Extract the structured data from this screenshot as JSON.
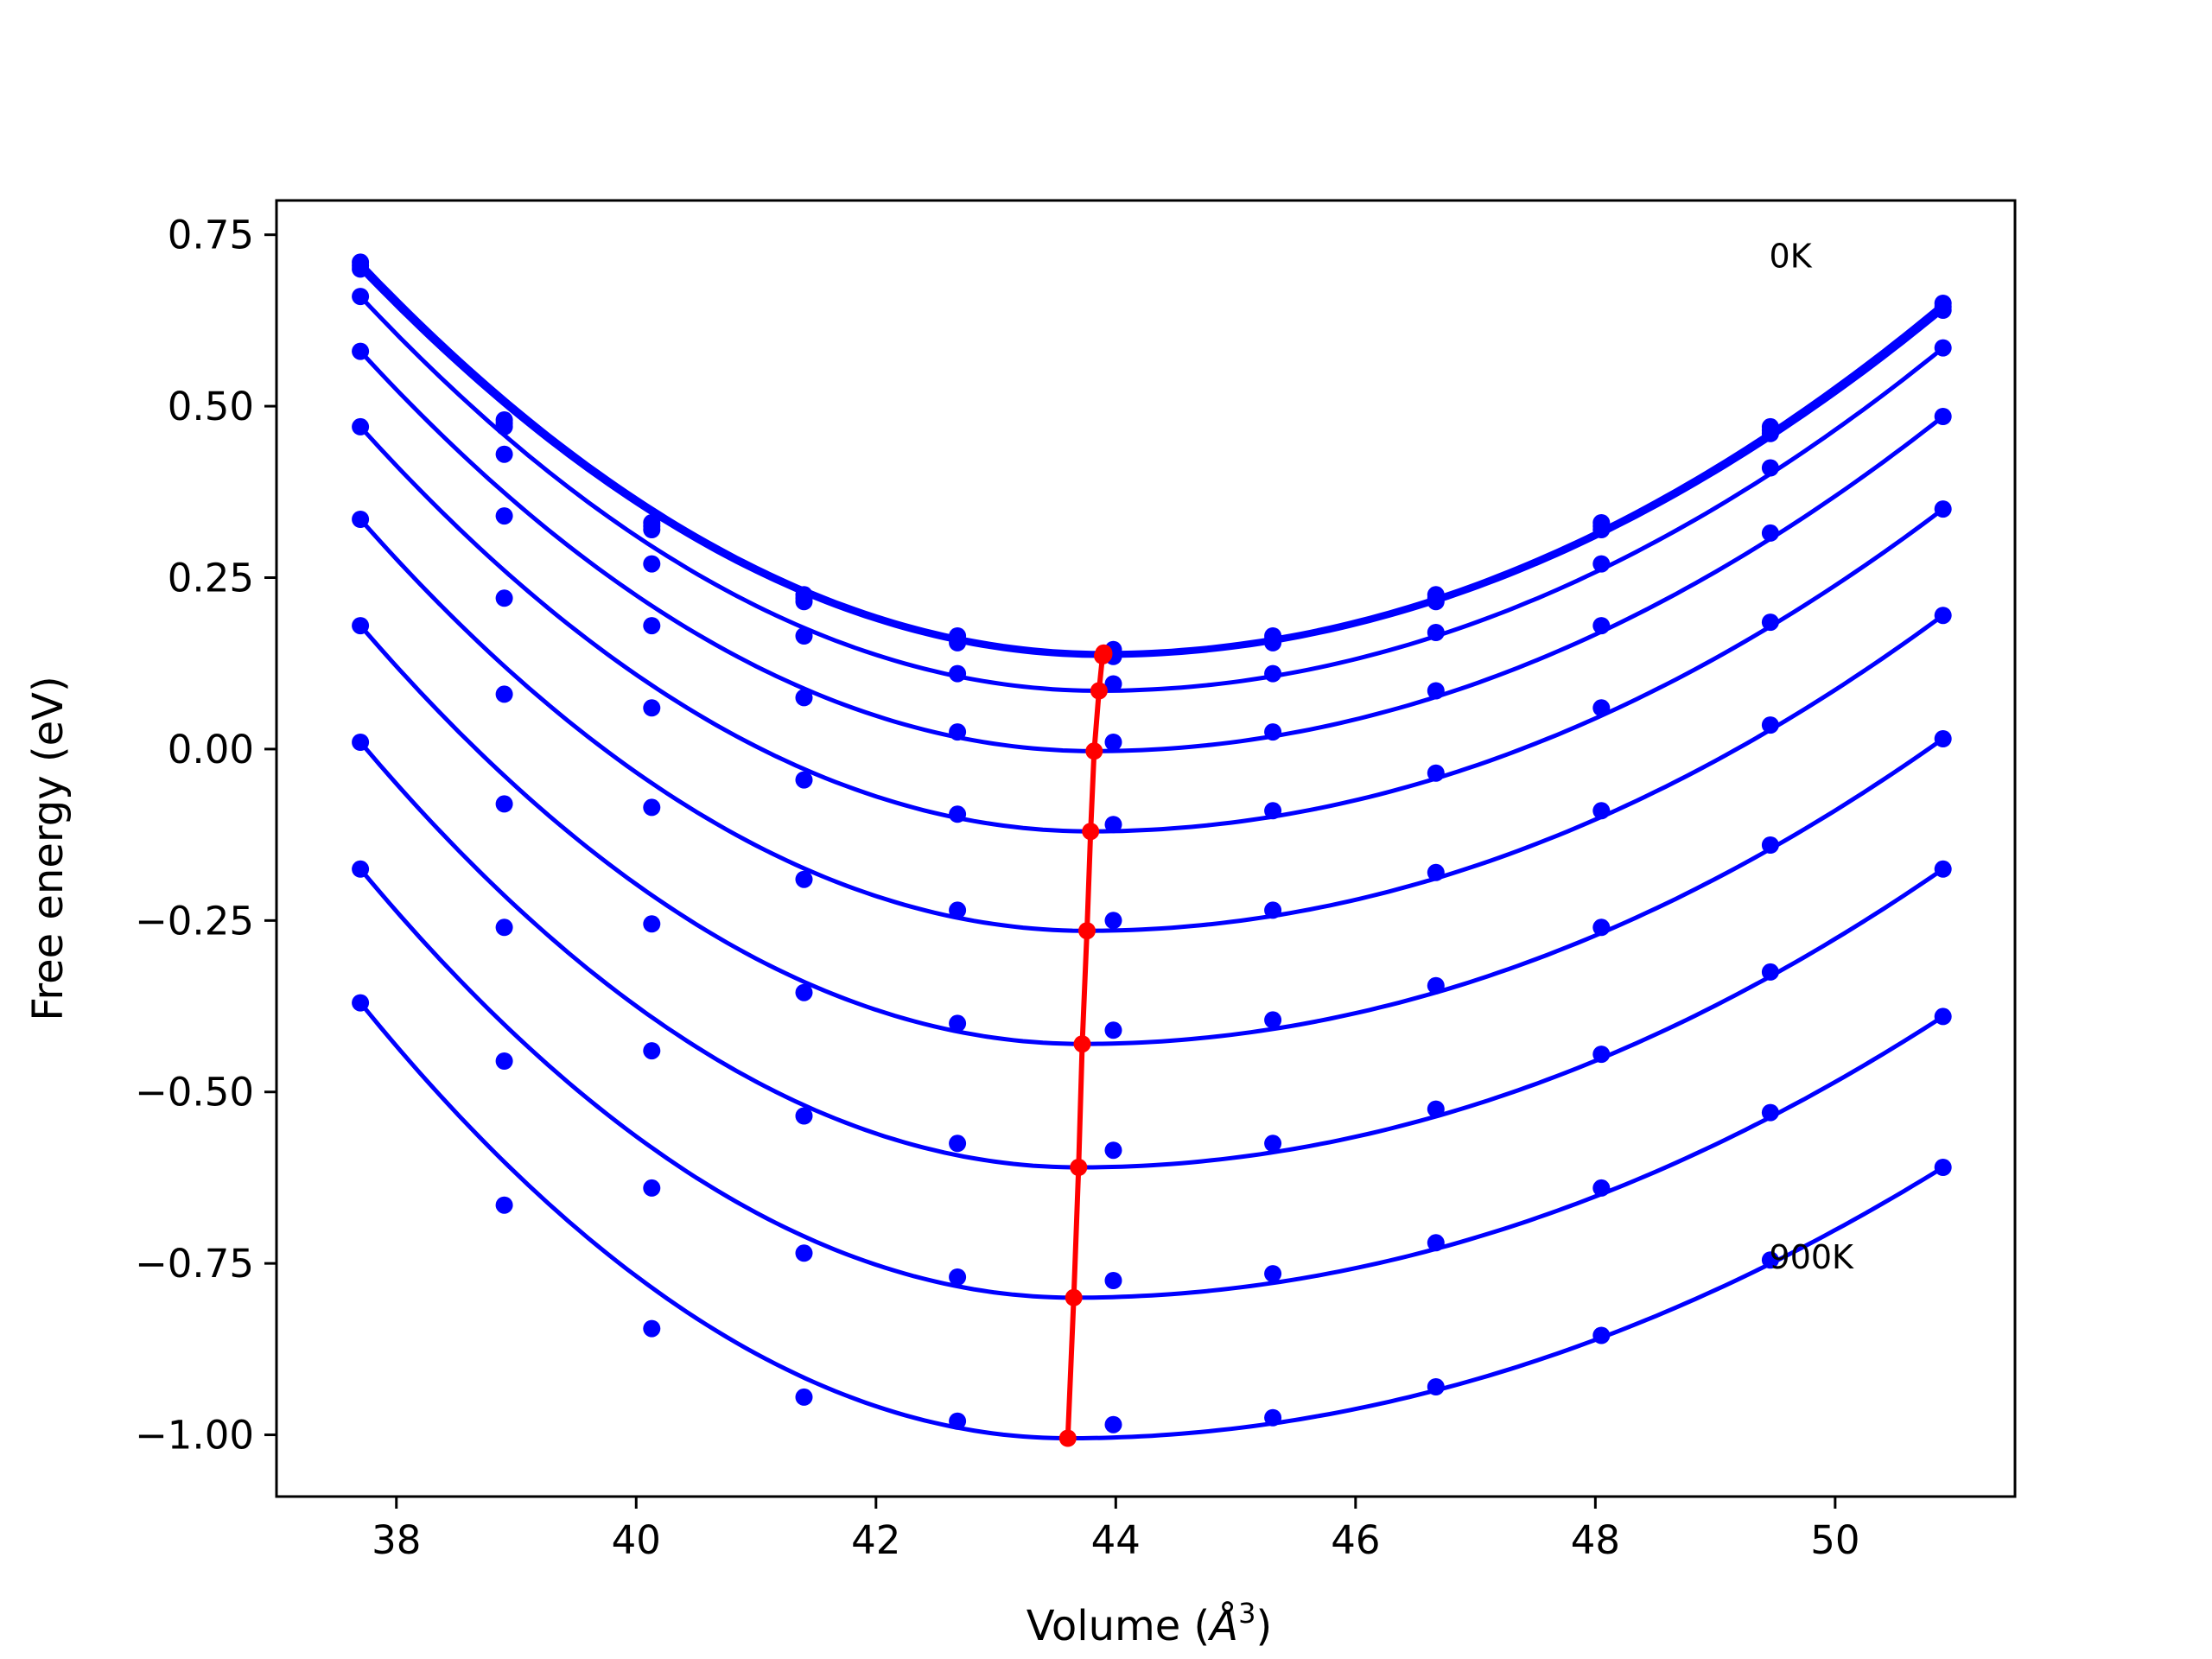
{
  "chart_data": {
    "type": "line",
    "title": "",
    "xlabel_main": "Volume (",
    "xlabel_unit": "Å",
    "xlabel_sup": "3",
    "xlabel_close": ")",
    "ylabel": "Free energy (eV)",
    "xlim": [
      37.0,
      51.5
    ],
    "ylim": [
      -1.09,
      0.8
    ],
    "x_ticks": [
      {
        "value": 38,
        "label": "38"
      },
      {
        "value": 40,
        "label": "40"
      },
      {
        "value": 42,
        "label": "42"
      },
      {
        "value": 44,
        "label": "44"
      },
      {
        "value": 46,
        "label": "46"
      },
      {
        "value": 48,
        "label": "48"
      },
      {
        "value": 50,
        "label": "50"
      }
    ],
    "y_ticks": [
      {
        "value": 0.75,
        "label": "0.75"
      },
      {
        "value": 0.5,
        "label": "0.50"
      },
      {
        "value": 0.25,
        "label": "0.25"
      },
      {
        "value": 0.0,
        "label": "0.00"
      },
      {
        "value": -0.25,
        "label": "−0.25"
      },
      {
        "value": -0.5,
        "label": "−0.50"
      },
      {
        "value": -0.75,
        "label": "−0.75"
      },
      {
        "value": -1.0,
        "label": "−1.00"
      }
    ],
    "grid": false,
    "volumes": [
      37.7,
      38.9,
      40.13,
      41.4,
      42.68,
      43.98,
      45.31,
      46.67,
      48.05,
      49.46,
      50.9
    ],
    "series": [
      {
        "y": [
          0.71,
          0.48,
          0.33,
          0.225,
          0.165,
          0.145,
          0.165,
          0.225,
          0.33,
          0.47,
          0.65
        ],
        "min": [
          43.9,
          0.14
        ]
      },
      {
        "y": [
          0.705,
          0.475,
          0.325,
          0.22,
          0.16,
          0.14,
          0.16,
          0.22,
          0.325,
          0.465,
          0.645
        ],
        "min": [
          43.9,
          0.138
        ]
      },
      {
        "y": [
          0.7,
          0.47,
          0.32,
          0.215,
          0.155,
          0.135,
          0.155,
          0.215,
          0.32,
          0.46,
          0.64
        ],
        "min": [
          43.89,
          0.136
        ]
      },
      {
        "y": [
          0.66,
          0.43,
          0.27,
          0.165,
          0.11,
          0.095,
          0.11,
          0.17,
          0.27,
          0.41,
          0.585
        ],
        "min": [
          43.86,
          0.085
        ]
      },
      {
        "y": [
          0.58,
          0.34,
          0.18,
          0.075,
          0.025,
          0.01,
          0.025,
          0.085,
          0.18,
          0.315,
          0.485
        ],
        "min": [
          43.82,
          -0.003
        ]
      },
      {
        "y": [
          0.47,
          0.22,
          0.06,
          -0.045,
          -0.095,
          -0.11,
          -0.09,
          -0.035,
          0.06,
          0.185,
          0.35
        ],
        "min": [
          43.79,
          -0.12
        ]
      },
      {
        "y": [
          0.335,
          0.08,
          -0.085,
          -0.19,
          -0.235,
          -0.25,
          -0.235,
          -0.18,
          -0.09,
          0.035,
          0.195
        ],
        "min": [
          43.76,
          -0.265
        ]
      },
      {
        "y": [
          0.18,
          -0.08,
          -0.255,
          -0.355,
          -0.4,
          -0.41,
          -0.395,
          -0.345,
          -0.26,
          -0.14,
          0.015
        ],
        "min": [
          43.72,
          -0.43
        ]
      },
      {
        "y": [
          0.01,
          -0.26,
          -0.44,
          -0.535,
          -0.575,
          -0.585,
          -0.575,
          -0.525,
          -0.445,
          -0.325,
          -0.175
        ],
        "min": [
          43.69,
          -0.61
        ]
      },
      {
        "y": [
          -0.175,
          -0.455,
          -0.64,
          -0.735,
          -0.77,
          -0.775,
          -0.765,
          -0.72,
          -0.64,
          -0.53,
          -0.39
        ],
        "min": [
          43.65,
          -0.8
        ]
      },
      {
        "y": [
          -0.37,
          -0.665,
          -0.845,
          -0.945,
          -0.98,
          -0.985,
          -0.975,
          -0.93,
          -0.855,
          -0.745,
          -0.61
        ],
        "min": [
          43.6,
          -1.005
        ]
      }
    ],
    "annotations": [
      {
        "text": "0K",
        "x": 49.45,
        "y": 0.72
      },
      {
        "text": "900K",
        "x": 49.45,
        "y": -0.74
      }
    ],
    "colors": {
      "curves": "#0000ff",
      "minimum_line": "#ff0000",
      "frame": "#000000"
    }
  }
}
